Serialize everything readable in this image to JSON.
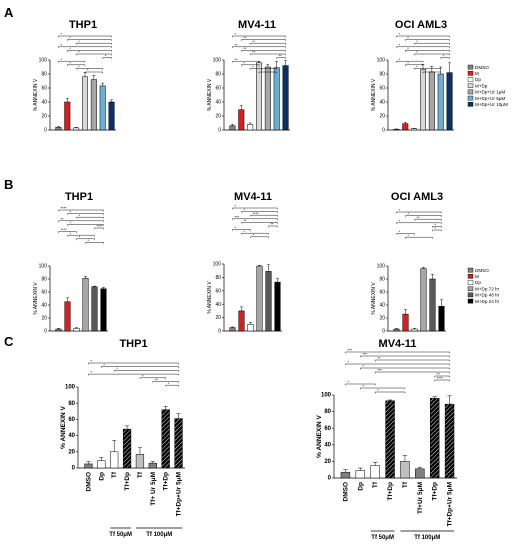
{
  "panel_letters": [
    "A",
    "B",
    "C"
  ],
  "colors": {
    "DMSO": "#808080",
    "M": "#e31a1c",
    "Dp": "#ffffff",
    "MDp": "#d9d9d9",
    "Ur1": "#a6a6a6",
    "Ur5": "#6baed6",
    "Ur10": "#08306b",
    "Dp72": "#a6a6a6",
    "Dp48": "#595959",
    "Dp24": "#000000",
    "Tf": "#bfbfbf",
    "TfUr": "#808080",
    "TfDp": "#9e9e9e",
    "TfDpRed": "#e31a1c",
    "TfDpUrRed": "#b2182b"
  },
  "legend_A": [
    "DMSO",
    "M",
    "Dp",
    "M+Dp",
    "M+Dp+Ur 1μM",
    "M+Dp+Ur 5μM",
    "M+Dp+Ur 10μM"
  ],
  "legend_B": [
    "DMSO",
    "M",
    "Dp",
    "M+Dp 72 hr",
    "M+Dp 48 hr",
    "M+Dp 24 hr"
  ],
  "chart_data": [
    {
      "type": "bar",
      "panel": "A",
      "title": "THP1",
      "ylabel": "% ANNEXIN V",
      "ylim": [
        0,
        100
      ],
      "yticks": [
        0,
        20,
        40,
        60,
        80,
        100
      ],
      "categories": [
        "DMSO",
        "M",
        "Dp",
        "M+Dp",
        "M+Dp+Ur 1μM",
        "M+Dp+Ur 5μM",
        "M+Dp+Ur 10μM"
      ],
      "values": [
        4,
        40,
        3,
        76,
        72,
        63,
        40
      ],
      "errors": [
        1,
        5,
        1,
        6,
        6,
        4,
        3
      ],
      "color_keys": [
        "DMSO",
        "M",
        "Dp",
        "MDp",
        "Ur1",
        "Ur5",
        "Ur10"
      ],
      "sig": [
        "*",
        "*",
        "*",
        "*",
        "*",
        "*",
        "*",
        "*",
        "*",
        "*",
        "*"
      ]
    },
    {
      "type": "bar",
      "panel": "A",
      "title": "MV4-11",
      "ylabel": "% ANNEXIN V",
      "ylim": [
        0,
        100
      ],
      "yticks": [
        0,
        20,
        40,
        60,
        80,
        100
      ],
      "categories": [
        "DMSO",
        "M",
        "Dp",
        "M+Dp",
        "M+Dp+Ur 1μM",
        "M+Dp+Ur 5μM",
        "M+Dp+Ur 10μM"
      ],
      "values": [
        6,
        29,
        8,
        96,
        90,
        89,
        92
      ],
      "errors": [
        2,
        6,
        2,
        2,
        4,
        9,
        7
      ],
      "color_keys": [
        "DMSO",
        "M",
        "Dp",
        "MDp",
        "Ur1",
        "Ur5",
        "Ur10"
      ],
      "sig": [
        "*",
        "**",
        "**",
        "**",
        "**",
        "**",
        "**",
        "**",
        "*",
        "*",
        "*"
      ]
    },
    {
      "type": "bar",
      "panel": "A",
      "title": "OCI  AML3",
      "ylabel": "% ANNEXIN V",
      "ylim": [
        0,
        100
      ],
      "yticks": [
        0,
        20,
        40,
        60,
        80,
        100
      ],
      "categories": [
        "DMSO",
        "M",
        "Dp",
        "M+Dp",
        "M+Dp+Ur 1μM",
        "M+Dp+Ur 5μM",
        "M+Dp+Ur 10μM"
      ],
      "values": [
        1,
        9,
        2,
        86,
        83,
        80,
        82
      ],
      "errors": [
        0.5,
        2,
        0.5,
        8,
        8,
        10,
        14
      ],
      "color_keys": [
        "DMSO",
        "M",
        "Dp",
        "MDp",
        "Ur1",
        "Ur5",
        "Ur10"
      ],
      "sig": [
        "*",
        "*",
        "*",
        "*",
        "*",
        "*",
        "*",
        "*",
        "*",
        "*",
        "*"
      ]
    },
    {
      "type": "bar",
      "panel": "B",
      "title": "THP1",
      "ylabel": "% ANNEXIN V",
      "ylim": [
        0,
        100
      ],
      "yticks": [
        0,
        20,
        40,
        60,
        80,
        100
      ],
      "categories": [
        "DMSO",
        "M",
        "Dp",
        "M+Dp 72 hr",
        "M+Dp 48 hr",
        "M+Dp 24 hr"
      ],
      "values": [
        3,
        45,
        4,
        81,
        68,
        65
      ],
      "errors": [
        1,
        6,
        1,
        3,
        1,
        2
      ],
      "color_keys": [
        "DMSO",
        "M",
        "Dp",
        "Dp72",
        "Dp48",
        "Dp24"
      ],
      "sig": [
        "****",
        "*",
        "*",
        "**",
        "*",
        "****",
        "****",
        "*",
        "*",
        "*"
      ]
    },
    {
      "type": "bar",
      "panel": "B",
      "title": "MV4-11",
      "ylabel": "% ANNEXIN V",
      "ylim": [
        0,
        100
      ],
      "yticks": [
        0,
        20,
        40,
        60,
        80,
        100
      ],
      "categories": [
        "DMSO",
        "M",
        "Dp",
        "M+Dp 72 hr",
        "M+Dp 48 hr",
        "M+Dp 24 hr"
      ],
      "values": [
        5,
        30,
        10,
        97,
        89,
        73
      ],
      "errors": [
        1,
        6,
        3,
        1,
        10,
        5
      ],
      "color_keys": [
        "DMSO",
        "M",
        "Dp",
        "Dp72",
        "Dp48",
        "Dp24"
      ],
      "sig": [
        "*",
        "*",
        "****",
        "***",
        "**",
        "**",
        "*",
        "*",
        "*"
      ]
    },
    {
      "type": "bar",
      "panel": "B",
      "title": "OCI  AML3",
      "ylabel": "% ANNEXIN V",
      "ylim": [
        0,
        100
      ],
      "yticks": [
        0,
        20,
        40,
        60,
        80,
        100
      ],
      "categories": [
        "DMSO",
        "M",
        "Dp",
        "M+Dp 72 hr",
        "M+Dp 48 hr",
        "M+Dp 24 hr"
      ],
      "values": [
        3,
        26,
        3,
        96,
        80,
        38
      ],
      "errors": [
        1,
        7,
        1,
        2,
        7,
        10
      ],
      "color_keys": [
        "DMSO",
        "M",
        "Dp",
        "Dp72",
        "Dp48",
        "Dp24"
      ],
      "sig": [
        "*",
        "*",
        "**",
        "*",
        "*",
        "*",
        "*",
        "*"
      ]
    },
    {
      "type": "bar",
      "panel": "C",
      "title": "THP1",
      "ylabel": "% ANNEXIN V",
      "ylim": [
        0,
        100
      ],
      "yticks": [
        0,
        20,
        40,
        60,
        80,
        100
      ],
      "categories": [
        "DMSO",
        "Dp",
        "Tf",
        "Tf+Dp",
        "Tf",
        "Tf+ Ur 5μM",
        "Tf+Dp",
        "Tf+Dp+Ur 5μM"
      ],
      "values": [
        5,
        9,
        20,
        48,
        17,
        6,
        72,
        61
      ],
      "errors": [
        3,
        4,
        14,
        4,
        8,
        2,
        4,
        6
      ],
      "color_keys": [
        "DMSO",
        "Dp",
        "Dp",
        "TfDp",
        "Tf",
        "TfUr",
        "TfDpRed",
        "TfDpUrRed"
      ],
      "hatched": [
        false,
        false,
        false,
        true,
        false,
        false,
        true,
        true
      ],
      "groups": [
        {
          "label": "Tf 50μM",
          "from": 2,
          "to": 3
        },
        {
          "label": "Tf 100μM",
          "from": 4,
          "to": 7
        }
      ],
      "sig": [
        "*",
        "*",
        "*",
        "*",
        "*",
        "**",
        "*"
      ]
    },
    {
      "type": "bar",
      "panel": "C",
      "title": "MV4-11",
      "ylabel": "% ANNEXIN V",
      "ylim": [
        0,
        100
      ],
      "yticks": [
        0,
        20,
        40,
        60,
        80,
        100
      ],
      "categories": [
        "DMSO",
        "Dp",
        "Tf",
        "Tf+Dp",
        "Tf",
        "Tf+Ur 5μM",
        "Tf+Dp",
        "Tf+Dp+Ur 5μM"
      ],
      "values": [
        7,
        9,
        15,
        93,
        20,
        11,
        96,
        89
      ],
      "errors": [
        3,
        3,
        4,
        1,
        7,
        2,
        2,
        10
      ],
      "color_keys": [
        "DMSO",
        "Dp",
        "Dp",
        "TfDp",
        "Tf",
        "TfUr",
        "TfDpRed",
        "TfDpUrRed"
      ],
      "hatched": [
        false,
        false,
        false,
        true,
        false,
        false,
        true,
        true
      ],
      "groups": [
        {
          "label": "Tf 50μM",
          "from": 2,
          "to": 3
        },
        {
          "label": "Tf 100μM",
          "from": 4,
          "to": 7
        }
      ],
      "sig": [
        "***",
        "***",
        "**",
        "*",
        "*",
        "***",
        "**",
        "****",
        "*",
        "*",
        "*"
      ]
    }
  ]
}
